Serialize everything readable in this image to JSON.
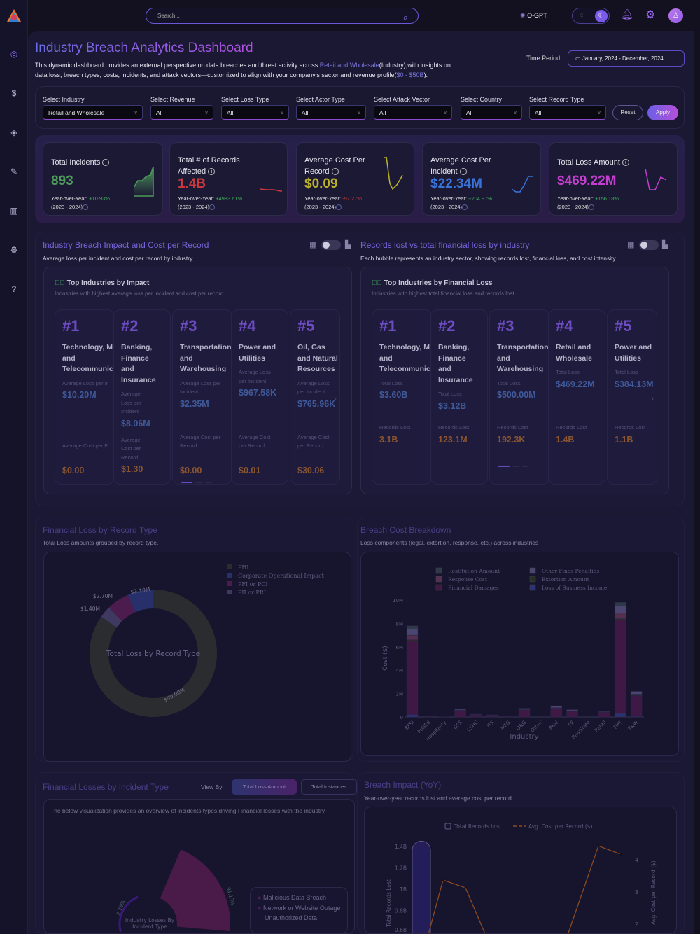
{
  "topbar": {
    "search_placeholder": "Search...",
    "ogpt_label": "O-GPT"
  },
  "sidebar": {
    "items": [
      "insights",
      "billing",
      "layers",
      "tools",
      "reports",
      "settings",
      "help"
    ]
  },
  "header": {
    "title": "Industry Breach Analytics Dashboard",
    "desc_1": "This dynamic dashboard provides an external perspective on data breaches and threat activity across ",
    "desc_industry": "Retail and Wholesale",
    "desc_2": "(Industry),with insights on",
    "desc_3": "data loss, breach types, costs, incidents, and attack vectors—customized to align with your company's sector and revenue profile(",
    "desc_revenue": "$0 - $50B",
    "desc_4": ").",
    "time_period_label": "Time Period",
    "time_period_value": "January, 2024 -  December, 2024"
  },
  "filters": [
    {
      "label": "Select Industry",
      "value": "Retail and Wholesale"
    },
    {
      "label": "Select Revenue",
      "value": "All"
    },
    {
      "label": "Select Loss Type",
      "value": "All"
    },
    {
      "label": "Select Actor Type",
      "value": "All"
    },
    {
      "label": "Select Attack Vector",
      "value": "All"
    },
    {
      "label": "Select Country",
      "value": "All"
    },
    {
      "label": "Select Record Type",
      "value": "All"
    }
  ],
  "filter_buttons": {
    "reset": "Reset",
    "apply": "Apply"
  },
  "kpis": [
    {
      "title": "Total Incidents",
      "value": "893",
      "yoy_label": "Year-over-Year:",
      "yoy": "+10.93%",
      "range": "(2023 - 2024)",
      "color": "#4e9a5c",
      "yoy_color": "#3fae5a"
    },
    {
      "title": "Total # of Records Affected",
      "value": "1.4B",
      "yoy_label": "Year-over-Year:",
      "yoy": "+4983.61%",
      "range": "(2023 - 2024)",
      "color": "#c8393d",
      "yoy_color": "#3fae5a"
    },
    {
      "title": "Average Cost Per Record",
      "value": "$0.09",
      "yoy_label": "Year-over-Year:",
      "yoy": "-97.27%",
      "range": "(2023 - 2024)",
      "color": "#b9b22a",
      "yoy_color": "#c8393d"
    },
    {
      "title": "Average Cost Per Incident",
      "value": "$22.34M",
      "yoy_label": "Year-over-Year:",
      "yoy": "+204.97%",
      "range": "(2023 - 2024)",
      "color": "#3a73d8",
      "yoy_color": "#3fae5a"
    },
    {
      "title": "Total Loss Amount",
      "value": "$469.22M",
      "yoy_label": "Year-over-Year:",
      "yoy": "+156.18%",
      "range": "(2023 - 2024)",
      "color": "#c43fd0",
      "yoy_color": "#3fae5a"
    }
  ],
  "impact": {
    "title": "Industry Breach Impact and Cost per Record",
    "subtitle": "Average loss per incident and cost per record by industry",
    "box_title": "Top Industries by Impact",
    "box_sub": "Industries with highest average loss per incident and cost per record",
    "cards": [
      {
        "rank": "#1",
        "name": "Technology, M\nand\nTelecommunic",
        "l1": "Average Loss per Ir",
        "v1": "$10.20M",
        "l2": "Average Cost per F",
        "v2": "$0.00"
      },
      {
        "rank": "#2",
        "name": "Banking,\nFinance\nand\nInsurance",
        "l1": "Average\nLoss per\nIncident",
        "v1": "$8.06M",
        "l2": "Average\nCost per\nRecord",
        "v2": "$1.30"
      },
      {
        "rank": "#3",
        "name": "Transportation\nand\nWarehousing",
        "l1": "Average Loss per\nIncident",
        "v1": "$2.35M",
        "l2": "Average Cost per\nRecord",
        "v2": "$0.00"
      },
      {
        "rank": "#4",
        "name": "Power and\nUtilities",
        "l1": "Average Loss\nper Incident",
        "v1": "$967.58K",
        "l2": "Average Cost\nper Record",
        "v2": "$0.01"
      },
      {
        "rank": "#5",
        "name": "Oil, Gas\nand Natural\nResources",
        "l1": "Average Loss\nper Incident",
        "v1": "$765.96K",
        "l2": "Average Cost\nper Record",
        "v2": "$30.06"
      }
    ]
  },
  "records": {
    "title": "Records lost vs total financial loss by industry",
    "subtitle": "Each bubble represents an industry sector, showing records lost, financial loss, and cost intensity.",
    "box_title": "Top Industries by Financial Loss",
    "box_sub": "Industries with highest total financial loss and records lost",
    "cards": [
      {
        "rank": "#1",
        "name": "Technology, M\nand\nTelecommunic",
        "l1": "Total Loss",
        "v1": "$3.60B",
        "l2": "Records Lost",
        "v2": "3.1B"
      },
      {
        "rank": "#2",
        "name": "Banking,\nFinance\nand\nInsurance",
        "l1": "Total Loss",
        "v1": "$3.12B",
        "l2": "Records Lost",
        "v2": "123.1M"
      },
      {
        "rank": "#3",
        "name": "Transportation\nand\nWarehousing",
        "l1": "Total Loss",
        "v1": "$500.00M",
        "l2": "Records Lost",
        "v2": "192.3K"
      },
      {
        "rank": "#4",
        "name": "Retail and\nWholesale",
        "l1": "Total Loss",
        "v1": "$469.22M",
        "l2": "Records Lost",
        "v2": "1.4B"
      },
      {
        "rank": "#5",
        "name": "Power and\nUtilities",
        "l1": "Total Loss",
        "v1": "$384.13M",
        "l2": "Records Lost",
        "v2": "1.1B"
      }
    ]
  },
  "record_type": {
    "title": "Financial Loss by Record Type",
    "subtitle": "Total Loss amounts grouped by record type."
  },
  "breakdown": {
    "title": "Breach Cost Breakdown",
    "subtitle": "Loss components (legal, extortion, response, etc.) across industries"
  },
  "incident": {
    "title": "Financial Losses by Incident Type",
    "view_by": "View By:",
    "btn_amount": "Total Loss Amount",
    "btn_instances": "Total Instances",
    "desc": "The below visualization provides an overview of incidents types driving Financial losses with the industry.",
    "center": "Industry Losses By Incident Type",
    "legend": [
      "Malicious Data Breach",
      "Network or Website Outage",
      "Unauthorized Data"
    ],
    "pct_big": "91.13%",
    "pct_small": "2.76%"
  },
  "yoy": {
    "title": "Breach Impact (YoY)",
    "subtitle": "Year-over-year records lost and average cost per record"
  },
  "chart_data": [
    {
      "type": "pie",
      "title": "Total Loss by Record Type",
      "labels": [
        "PHI",
        "Corporate Operational Impact",
        "PFI or PCI",
        "PII or PRI"
      ],
      "values": [
        40.0,
        3.1,
        2.7,
        1.4
      ],
      "value_labels": [
        "$40.00M",
        "$3.10M",
        "$2.70M",
        "$1.40M"
      ],
      "colors": [
        "#2a2c30",
        "#27306a",
        "#4c1c4e",
        "#3f3860"
      ]
    },
    {
      "type": "bar",
      "stacked": true,
      "xlabel": "Industry",
      "ylabel": "Cost ($)",
      "ylim": [
        0,
        10000000
      ],
      "yticks": [
        "0",
        "2M",
        "4M",
        "6M",
        "8M",
        "10M"
      ],
      "categories": [
        "BFSI",
        "PubEd",
        "Hospitality",
        "GPS",
        "LSHC",
        "ITS",
        "MFG",
        "O&G",
        "Other",
        "P&U",
        "PE",
        "RealState",
        "Retail",
        "TMT",
        "T&W"
      ],
      "series": [
        {
          "name": "Loss of Business Income",
          "color": "#2c3272",
          "values": [
            0.2,
            0,
            0,
            0,
            0,
            0,
            0,
            0,
            0,
            0,
            0,
            0,
            0,
            0.3,
            0.05
          ]
        },
        {
          "name": "Financial Damages",
          "color": "#3f1845",
          "values": [
            6.3,
            0.04,
            0.01,
            0.55,
            0.18,
            0.12,
            0.06,
            0.6,
            0,
            0.75,
            0.48,
            0,
            0.4,
            8.0,
            1.75
          ]
        },
        {
          "name": "Extortion Amount",
          "color": "#263026",
          "values": [
            0.1,
            0,
            0,
            0,
            0,
            0,
            0,
            0,
            0,
            0,
            0,
            0,
            0,
            0.1,
            0.05
          ]
        },
        {
          "name": "Response Cost",
          "color": "#533050",
          "values": [
            0.4,
            0.01,
            0,
            0.03,
            0.02,
            0.02,
            0.01,
            0.03,
            0,
            0.05,
            0.05,
            0,
            0.03,
            0.5,
            0.1
          ]
        },
        {
          "name": "Other Fines Penalties",
          "color": "#4a4670",
          "values": [
            0.5,
            0.01,
            0,
            0.08,
            0.03,
            0.03,
            0.01,
            0.1,
            0,
            0.12,
            0.08,
            0,
            0.05,
            0.6,
            0.2
          ]
        },
        {
          "name": "Restitution Amount",
          "color": "#2e3a4a",
          "values": [
            0.3,
            0,
            0,
            0.02,
            0.01,
            0.01,
            0,
            0.02,
            0,
            0.03,
            0.02,
            0,
            0.02,
            0.3,
            0.05
          ]
        }
      ],
      "legend_order": [
        "Restitution Amount",
        "Other Fines Penalties",
        "Response Cost",
        "Extortion Amount",
        "Financial Damages",
        "Loss of Business Income"
      ]
    },
    {
      "type": "line",
      "title": "Breach Impact (YoY)",
      "ylabel_left": "Total Records Lost",
      "ylabel_right": "Avg. Cost per Record ($)",
      "legend": [
        "Total Records Lost",
        "Avg. Cost per Record ($)"
      ],
      "left_ticks": [
        "0.6B",
        "0.8B",
        "1B",
        "1.2B",
        "1.4B"
      ],
      "right_ticks": [
        "2",
        "3",
        "4"
      ],
      "bars_billion": [
        1.45
      ],
      "line_values": [
        0.8,
        3.37,
        3.13,
        1.6,
        0.9,
        0.9,
        0.9,
        1.6,
        4.43,
        4.17
      ]
    }
  ]
}
